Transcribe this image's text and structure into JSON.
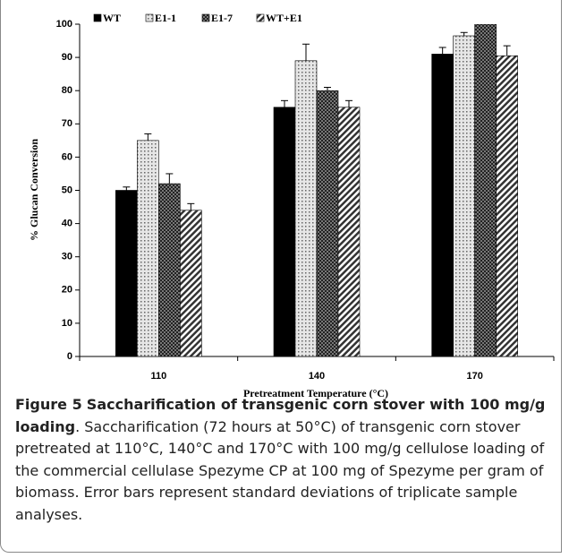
{
  "chart_data": {
    "type": "bar",
    "ylabel": "% Glucan Conversion",
    "xlabel": "Pretreatment Temperature (°C)",
    "categories": [
      "110",
      "140",
      "170"
    ],
    "series": [
      {
        "name": "WT",
        "color": "#000000",
        "values": [
          50,
          75,
          91
        ],
        "errors": [
          1,
          2,
          2
        ]
      },
      {
        "name": "E1-1",
        "color": "#c8c8c8",
        "values": [
          65,
          89,
          96.5
        ],
        "errors": [
          2,
          5,
          1
        ]
      },
      {
        "name": "E1-7",
        "color": "#3a3a3a",
        "values": [
          52,
          80,
          100
        ],
        "errors": [
          3,
          1,
          1
        ]
      },
      {
        "name": "WT+E1",
        "color": "#9a9a9a",
        "values": [
          44,
          75,
          90.5
        ],
        "errors": [
          2,
          2,
          3
        ]
      }
    ],
    "ylim": [
      0,
      100
    ],
    "yticks": [
      0,
      10,
      20,
      30,
      40,
      50,
      60,
      70,
      80,
      90,
      100
    ],
    "legend": "top-left"
  },
  "caption": {
    "label": "Figure 5",
    "title": "Saccharification of transgenic corn stover with 100 mg/g loading",
    "text": ". Saccharification (72 hours at 50°C) of transgenic corn stover pretreated at 110°C, 140°C and 170°C with 100 mg/g cellulose loading of the commercial cellulase Spezyme CP at 100 mg of Spezyme per gram of biomass. Error bars represent standard deviations of triplicate sample analyses."
  }
}
